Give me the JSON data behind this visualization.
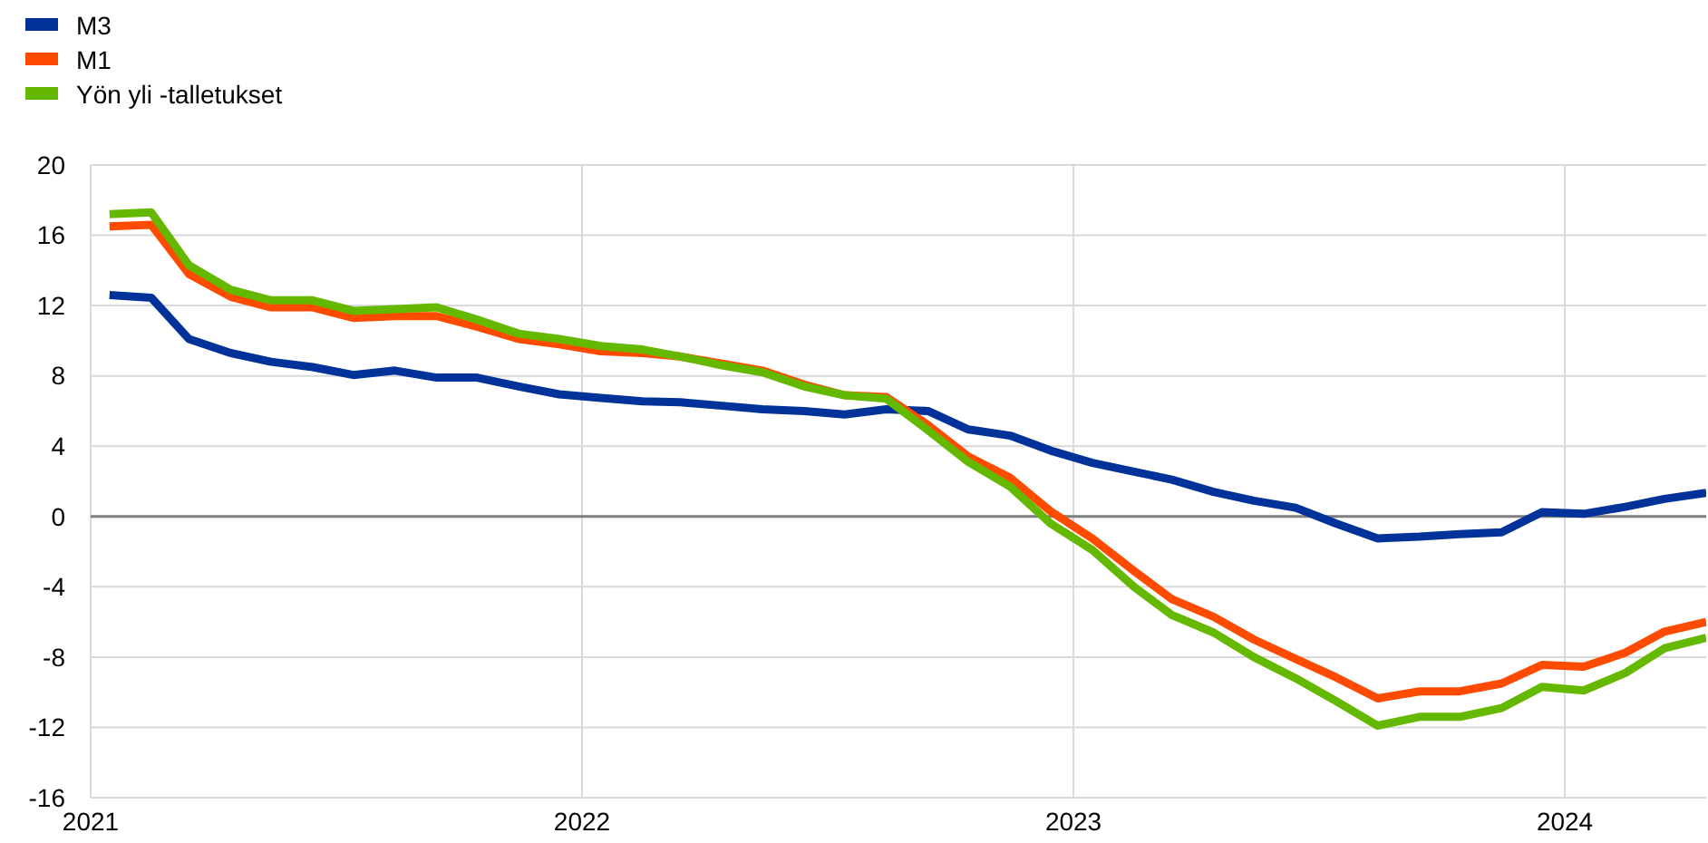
{
  "chart_data": {
    "type": "line",
    "x": [
      "2021-01-15",
      "2021-02-15",
      "2021-03-15",
      "2021-04-15",
      "2021-05-15",
      "2021-06-15",
      "2021-07-15",
      "2021-08-15",
      "2021-09-15",
      "2021-10-15",
      "2021-11-15",
      "2021-12-15",
      "2022-01-15",
      "2022-02-15",
      "2022-03-15",
      "2022-04-15",
      "2022-05-15",
      "2022-06-15",
      "2022-07-15",
      "2022-08-15",
      "2022-09-15",
      "2022-10-15",
      "2022-11-15",
      "2022-12-15",
      "2023-01-15",
      "2023-02-15",
      "2023-03-15",
      "2023-04-15",
      "2023-05-15",
      "2023-06-15",
      "2023-07-15",
      "2023-08-15",
      "2023-09-15",
      "2023-10-15",
      "2023-11-15",
      "2023-12-15",
      "2024-01-15",
      "2024-02-15",
      "2024-03-15",
      "2024-04-15"
    ],
    "series": [
      {
        "name": "M3",
        "color": "#003299",
        "values": [
          12.6,
          12.45,
          10.1,
          9.3,
          8.8,
          8.5,
          8.05,
          8.3,
          7.9,
          7.9,
          7.4,
          6.95,
          6.75,
          6.55,
          6.5,
          6.3,
          6.1,
          6.0,
          5.8,
          6.1,
          6.0,
          4.95,
          4.6,
          3.75,
          3.05,
          2.55,
          2.1,
          1.4,
          0.9,
          0.5,
          -0.4,
          -1.25,
          -1.15,
          -1.0,
          -0.9,
          0.25,
          0.15,
          0.55,
          1.0,
          1.35
        ]
      },
      {
        "name": "M1",
        "color": "#ff4b00",
        "values": [
          16.5,
          16.6,
          13.8,
          12.5,
          11.9,
          11.9,
          11.3,
          11.4,
          11.4,
          10.8,
          10.1,
          9.8,
          9.4,
          9.3,
          9.1,
          8.7,
          8.3,
          7.5,
          6.9,
          6.8,
          5.2,
          3.4,
          2.2,
          0.3,
          -1.25,
          -3.1,
          -4.7,
          -5.7,
          -7.0,
          -8.1,
          -9.15,
          -10.35,
          -9.95,
          -9.95,
          -9.5,
          -8.45,
          -8.55,
          -7.75,
          -6.55,
          -6.0
        ]
      },
      {
        "name": "Yön yli -talletukset",
        "color": "#65b800",
        "values": [
          17.2,
          17.3,
          14.3,
          12.9,
          12.3,
          12.3,
          11.7,
          11.8,
          11.9,
          11.2,
          10.4,
          10.1,
          9.7,
          9.5,
          9.1,
          8.6,
          8.2,
          7.4,
          6.9,
          6.7,
          4.9,
          3.1,
          1.7,
          -0.4,
          -1.9,
          -4.0,
          -5.6,
          -6.6,
          -8.0,
          -9.2,
          -10.5,
          -11.9,
          -11.4,
          -11.4,
          -10.9,
          -9.7,
          -9.9,
          -8.9,
          -7.5,
          -6.9
        ]
      }
    ],
    "xlim": [
      "2021-01-01",
      "2024-04-15"
    ],
    "xticks": [
      {
        "value": "2021-01-01",
        "label": "2021"
      },
      {
        "value": "2022-01-01",
        "label": "2022"
      },
      {
        "value": "2023-01-01",
        "label": "2023"
      },
      {
        "value": "2024-01-01",
        "label": "2024"
      }
    ],
    "ylim": [
      -16,
      20
    ],
    "yticks": [
      -16,
      -12,
      -8,
      -4,
      0,
      4,
      8,
      12,
      16,
      20
    ],
    "ref_lines": [
      {
        "axis": "y",
        "value": 0,
        "color": "#7f7f7f"
      }
    ],
    "grid": true,
    "legend": "top left",
    "marker": "none",
    "line_style": "solid"
  }
}
